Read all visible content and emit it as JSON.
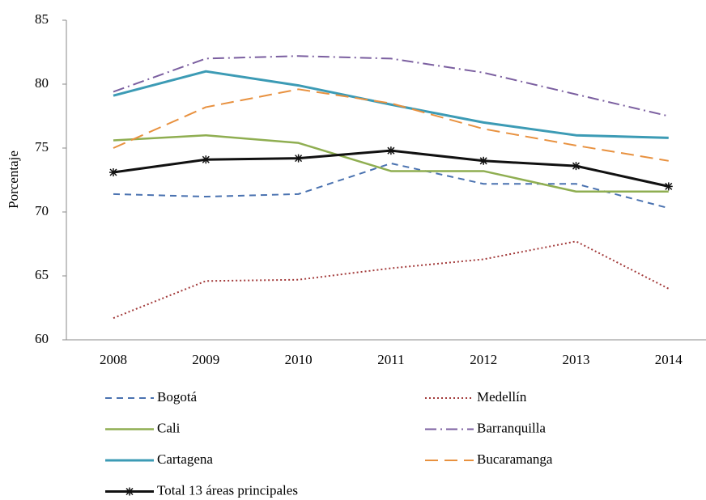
{
  "chart_data": {
    "type": "line",
    "y_label": "Porcentaje",
    "categories": [
      "2008",
      "2009",
      "2010",
      "2011",
      "2012",
      "2013",
      "2014"
    ],
    "ylim": [
      60,
      85
    ],
    "yticks": [
      60,
      65,
      70,
      75,
      80,
      85
    ],
    "series": [
      {
        "name": "Bogotá",
        "color": "#4a72b0",
        "dash": "8,6",
        "width": 2,
        "values": [
          71.4,
          71.2,
          71.4,
          73.8,
          72.2,
          72.2,
          70.3
        ]
      },
      {
        "name": "Medellín",
        "color": "#a33b3b",
        "dash": "2,3",
        "width": 2,
        "values": [
          61.7,
          64.6,
          64.7,
          65.6,
          66.3,
          67.7,
          64.0
        ]
      },
      {
        "name": "Cali",
        "color": "#8fae51",
        "dash": "none",
        "width": 2.5,
        "values": [
          75.6,
          76.0,
          75.4,
          73.2,
          73.2,
          71.6,
          71.6
        ]
      },
      {
        "name": "Barranquilla",
        "color": "#7b5fa0",
        "dash": "14,5,2,5",
        "width": 2,
        "values": [
          79.4,
          82.0,
          82.2,
          82.0,
          80.9,
          79.2,
          77.5
        ]
      },
      {
        "name": "Cartagena",
        "color": "#3c9bb5",
        "dash": "none",
        "width": 3,
        "values": [
          79.1,
          81.0,
          79.9,
          78.4,
          77.0,
          76.0,
          75.8
        ]
      },
      {
        "name": "Bucaramanga",
        "color": "#e8913f",
        "dash": "16,8",
        "width": 2,
        "values": [
          75.0,
          78.2,
          79.6,
          78.5,
          76.5,
          75.2,
          74.0
        ]
      },
      {
        "name": "Total 13 áreas principales",
        "color": "#111111",
        "dash": "none",
        "width": 3,
        "marker": "asterisk",
        "values": [
          73.1,
          74.1,
          74.2,
          74.8,
          74.0,
          73.6,
          72.0
        ]
      }
    ]
  }
}
